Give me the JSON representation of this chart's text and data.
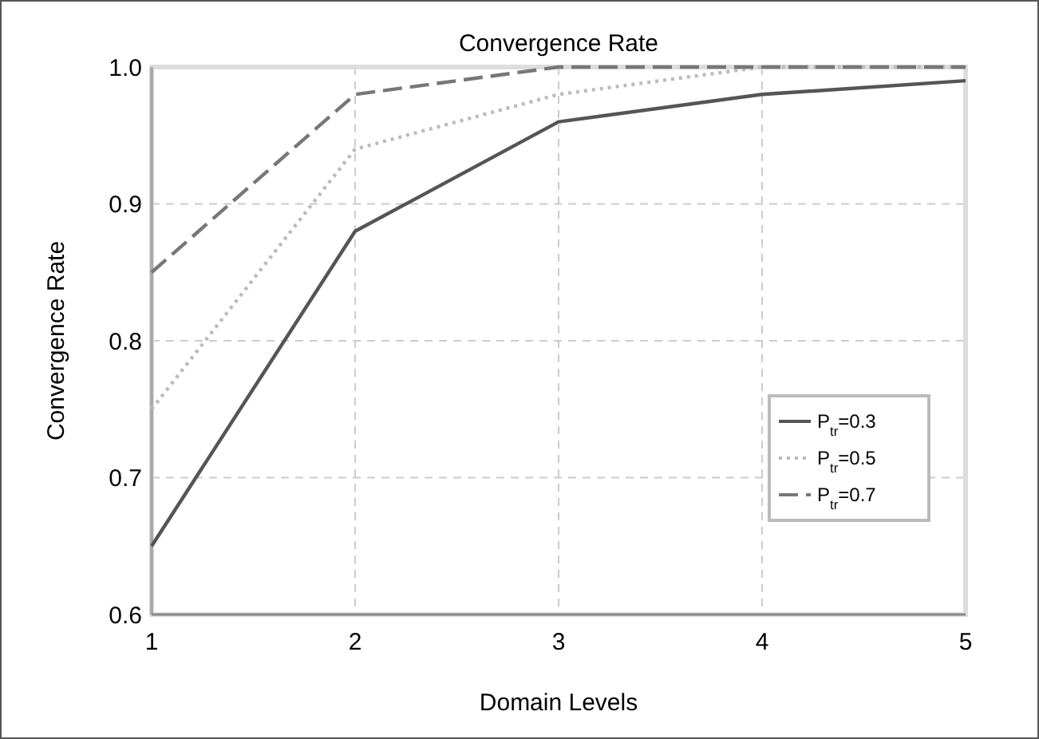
{
  "chart_data": {
    "type": "line",
    "title": "Convergence Rate",
    "xlabel": "Domain Levels",
    "ylabel": "Convergence Rate",
    "x": [
      1,
      2,
      3,
      4,
      5
    ],
    "xlim": [
      1,
      5
    ],
    "xticks": [
      1,
      2,
      3,
      4,
      5
    ],
    "ylim": [
      0.6,
      1.0
    ],
    "yticks": [
      {
        "value": 0.6,
        "label": "0.6"
      },
      {
        "value": 0.7,
        "label": "0.7"
      },
      {
        "value": 0.8,
        "label": "0.8"
      },
      {
        "value": 0.9,
        "label": "0.9"
      },
      {
        "value": 1.0,
        "label": "1.0"
      }
    ],
    "grid": true,
    "legend": "right",
    "marker": "none",
    "series": [
      {
        "name": "P$_{tr}$=0.3",
        "color": "#555555",
        "line_style": "solid",
        "values": [
          0.65,
          0.88,
          0.96,
          0.98,
          0.99
        ]
      },
      {
        "name": "P$_{tr}$=0.5",
        "color": "#bbbbbb",
        "line_style": "dotted",
        "values": [
          0.75,
          0.94,
          0.98,
          1.0,
          1.0
        ]
      },
      {
        "name": "P$_{tr}$=0.7",
        "color": "#777777",
        "line_style": "dashed",
        "values": [
          0.85,
          0.98,
          1.0,
          1.0,
          1.0
        ]
      }
    ]
  }
}
